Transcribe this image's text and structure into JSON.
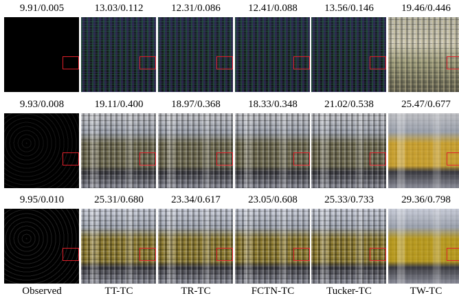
{
  "rows": [
    {
      "labels": [
        "9.91/0.005",
        "13.03/0.112",
        "12.31/0.086",
        "12.41/0.088",
        "13.56/0.146",
        "19.46/0.446"
      ]
    },
    {
      "labels": [
        "9.93/0.008",
        "19.11/0.400",
        "18.97/0.368",
        "18.33/0.348",
        "21.02/0.538",
        "25.47/0.677"
      ]
    },
    {
      "labels": [
        "9.95/0.010",
        "25.31/0.680",
        "23.34/0.617",
        "23.05/0.608",
        "25.33/0.733",
        "29.36/0.798"
      ]
    }
  ],
  "methods": [
    "Observed",
    "TT-TC",
    "TR-TC",
    "FCTN-TC",
    "Tucker-TC",
    "TW-TC"
  ]
}
